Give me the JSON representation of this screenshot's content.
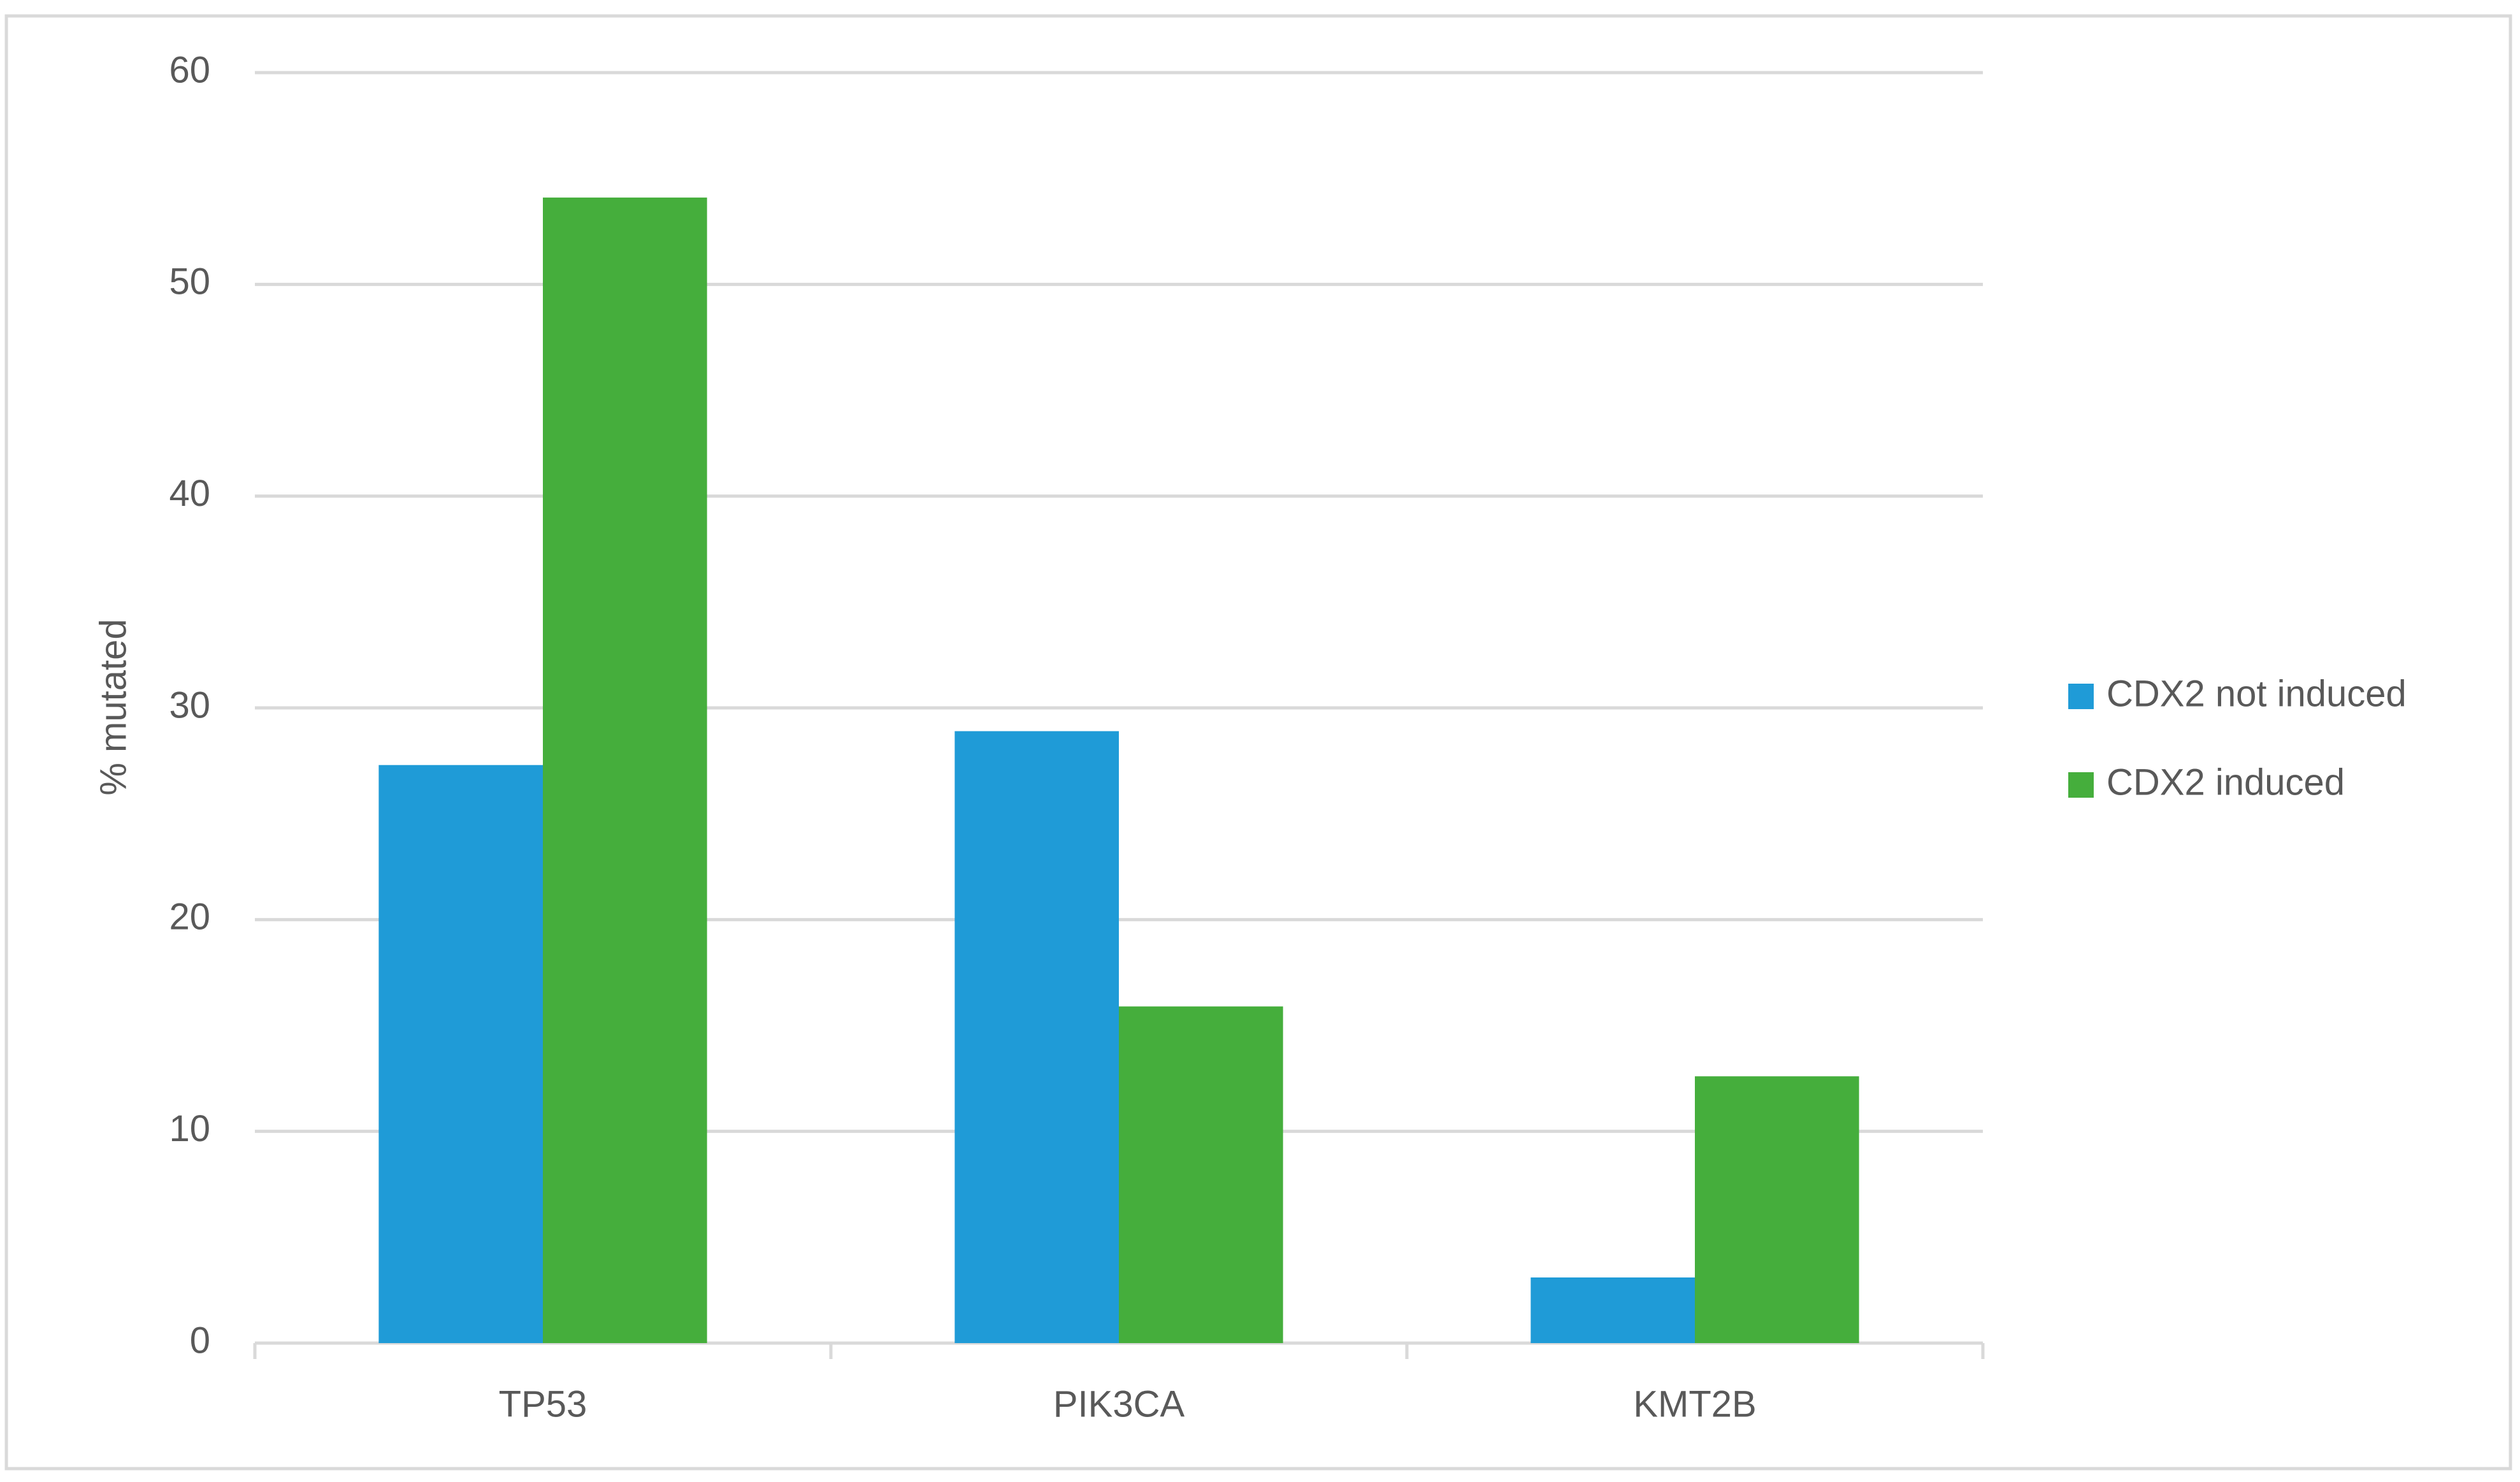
{
  "chart_data": {
    "type": "bar",
    "y_label": "% mutated",
    "categories": [
      "TP53",
      "PIK3CA",
      "KMT2B"
    ],
    "series": [
      {
        "name": "CDX2 not induced",
        "color": "#1f9bd7",
        "values": [
          27.3,
          28.9,
          3.1
        ]
      },
      {
        "name": "CDX2 induced",
        "color": "#45ae3c",
        "values": [
          54.1,
          15.9,
          12.6
        ]
      }
    ],
    "ylim": [
      0,
      60
    ],
    "yticks": [
      0,
      10,
      20,
      30,
      40,
      50,
      60
    ],
    "grid": true,
    "legend": "right"
  }
}
